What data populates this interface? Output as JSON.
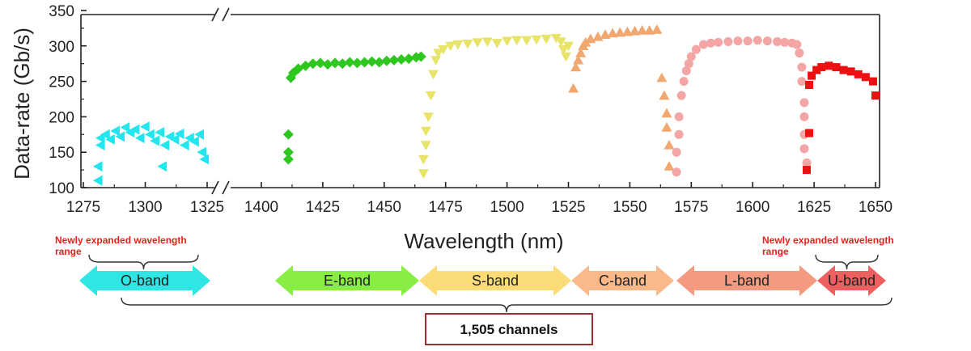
{
  "chart_data": {
    "type": "scatter",
    "title": "",
    "xlabel": "Wavelength (nm)",
    "ylabel": "Data-rate (Gb/s)",
    "ylim": [
      100,
      350
    ],
    "y_ticks": [
      100,
      150,
      200,
      250,
      300,
      350
    ],
    "x_segments": [
      {
        "range": [
          1275,
          1325
        ],
        "ticks": [
          1275,
          1300,
          1325
        ]
      },
      {
        "range": [
          1400,
          1650
        ],
        "ticks": [
          1400,
          1425,
          1450,
          1475,
          1500,
          1525,
          1550,
          1575,
          1600,
          1625,
          1650
        ]
      }
    ],
    "x_break": [
      1325,
      1400
    ],
    "grid": false,
    "series": [
      {
        "band": "O-band",
        "marker": "triangle-left",
        "color": "#22e5ee",
        "points": [
          [
            1281,
            110
          ],
          [
            1281,
            130
          ],
          [
            1282,
            160
          ],
          [
            1282,
            170
          ],
          [
            1284,
            175
          ],
          [
            1286,
            168
          ],
          [
            1288,
            180
          ],
          [
            1290,
            172
          ],
          [
            1292,
            185
          ],
          [
            1294,
            178
          ],
          [
            1296,
            182
          ],
          [
            1298,
            170
          ],
          [
            1300,
            186
          ],
          [
            1302,
            175
          ],
          [
            1304,
            166
          ],
          [
            1306,
            178
          ],
          [
            1308,
            160
          ],
          [
            1310,
            172
          ],
          [
            1312,
            168
          ],
          [
            1314,
            176
          ],
          [
            1316,
            160
          ],
          [
            1318,
            170
          ],
          [
            1320,
            165
          ],
          [
            1322,
            175
          ],
          [
            1323,
            150
          ],
          [
            1324,
            140
          ],
          [
            1307,
            130
          ]
        ]
      },
      {
        "band": "E-band",
        "marker": "diamond",
        "color": "#2ec71f",
        "points": [
          [
            1411,
            140
          ],
          [
            1411,
            150
          ],
          [
            1411,
            175
          ],
          [
            1412,
            255
          ],
          [
            1413,
            262
          ],
          [
            1415,
            268
          ],
          [
            1418,
            272
          ],
          [
            1421,
            275
          ],
          [
            1424,
            276
          ],
          [
            1427,
            274
          ],
          [
            1430,
            276
          ],
          [
            1433,
            275
          ],
          [
            1436,
            277
          ],
          [
            1439,
            276
          ],
          [
            1442,
            277
          ],
          [
            1445,
            278
          ],
          [
            1448,
            277
          ],
          [
            1451,
            279
          ],
          [
            1454,
            280
          ],
          [
            1457,
            281
          ],
          [
            1460,
            282
          ],
          [
            1463,
            284
          ],
          [
            1465,
            285
          ]
        ]
      },
      {
        "band": "S-band",
        "marker": "triangle-down",
        "color": "#e8e46a",
        "points": [
          [
            1466,
            120
          ],
          [
            1466,
            140
          ],
          [
            1467,
            160
          ],
          [
            1467,
            180
          ],
          [
            1468,
            200
          ],
          [
            1469,
            230
          ],
          [
            1470,
            260
          ],
          [
            1471,
            280
          ],
          [
            1472,
            290
          ],
          [
            1474,
            295
          ],
          [
            1477,
            300
          ],
          [
            1480,
            302
          ],
          [
            1484,
            303
          ],
          [
            1488,
            305
          ],
          [
            1492,
            306
          ],
          [
            1496,
            304
          ],
          [
            1500,
            307
          ],
          [
            1504,
            308
          ],
          [
            1508,
            308
          ],
          [
            1512,
            309
          ],
          [
            1516,
            310
          ],
          [
            1520,
            311
          ],
          [
            1522,
            306
          ],
          [
            1523,
            295
          ],
          [
            1524,
            285
          ],
          [
            1525,
            300
          ]
        ]
      },
      {
        "band": "C-band",
        "marker": "triangle-up",
        "color": "#f0a870",
        "points": [
          [
            1527,
            240
          ],
          [
            1528,
            270
          ],
          [
            1529,
            280
          ],
          [
            1530,
            290
          ],
          [
            1531,
            300
          ],
          [
            1532,
            305
          ],
          [
            1534,
            310
          ],
          [
            1537,
            313
          ],
          [
            1540,
            316
          ],
          [
            1543,
            318
          ],
          [
            1546,
            319
          ],
          [
            1549,
            320
          ],
          [
            1552,
            321
          ],
          [
            1555,
            322
          ],
          [
            1558,
            322
          ],
          [
            1561,
            323
          ],
          [
            1563,
            255
          ],
          [
            1564,
            230
          ],
          [
            1565,
            205
          ],
          [
            1565,
            185
          ],
          [
            1566,
            160
          ],
          [
            1566,
            130
          ]
        ]
      },
      {
        "band": "L-band",
        "marker": "circle",
        "color": "#f4a5a5",
        "points": [
          [
            1569,
            122
          ],
          [
            1569,
            150
          ],
          [
            1570,
            175
          ],
          [
            1570,
            200
          ],
          [
            1571,
            230
          ],
          [
            1572,
            250
          ],
          [
            1573,
            265
          ],
          [
            1574,
            275
          ],
          [
            1575,
            285
          ],
          [
            1577,
            295
          ],
          [
            1580,
            302
          ],
          [
            1583,
            304
          ],
          [
            1586,
            305
          ],
          [
            1590,
            306
          ],
          [
            1594,
            307
          ],
          [
            1598,
            307
          ],
          [
            1602,
            308
          ],
          [
            1606,
            307
          ],
          [
            1610,
            306
          ],
          [
            1613,
            305
          ],
          [
            1616,
            304
          ],
          [
            1618,
            302
          ],
          [
            1619,
            290
          ],
          [
            1620,
            270
          ],
          [
            1620,
            250
          ],
          [
            1621,
            220
          ],
          [
            1621,
            200
          ],
          [
            1621,
            175
          ],
          [
            1621,
            155
          ],
          [
            1622,
            135
          ]
        ]
      },
      {
        "band": "U-band",
        "marker": "square",
        "color": "#ec1010",
        "points": [
          [
            1622,
            125
          ],
          [
            1623,
            177
          ],
          [
            1623,
            245
          ],
          [
            1624,
            258
          ],
          [
            1626,
            266
          ],
          [
            1628,
            270
          ],
          [
            1631,
            272
          ],
          [
            1634,
            270
          ],
          [
            1637,
            266
          ],
          [
            1640,
            264
          ],
          [
            1643,
            260
          ],
          [
            1646,
            256
          ],
          [
            1649,
            250
          ],
          [
            1650,
            230
          ]
        ]
      }
    ],
    "bands": [
      {
        "label": "O-band",
        "range": [
          1275,
          1325
        ],
        "color": "#2fe6e4"
      },
      {
        "label": "E-band",
        "range": [
          1410,
          1465
        ],
        "color": "#88ee44"
      },
      {
        "label": "S-band",
        "range": [
          1465,
          1525
        ],
        "color": "#fbdc77"
      },
      {
        "label": "C-band",
        "range": [
          1525,
          1565
        ],
        "color": "#fbb98a"
      },
      {
        "label": "L-band",
        "range": [
          1565,
          1625
        ],
        "color": "#f49a80"
      },
      {
        "label": "U-band",
        "range": [
          1625,
          1650
        ],
        "color": "#ec6060"
      }
    ],
    "annotations": [
      {
        "text": [
          "Newly expanded wavelength",
          "range"
        ],
        "target": "O-band"
      },
      {
        "text": [
          "Newly expanded wavelength",
          "range"
        ],
        "target": "U-band"
      }
    ],
    "total_label": "1,505 channels"
  }
}
